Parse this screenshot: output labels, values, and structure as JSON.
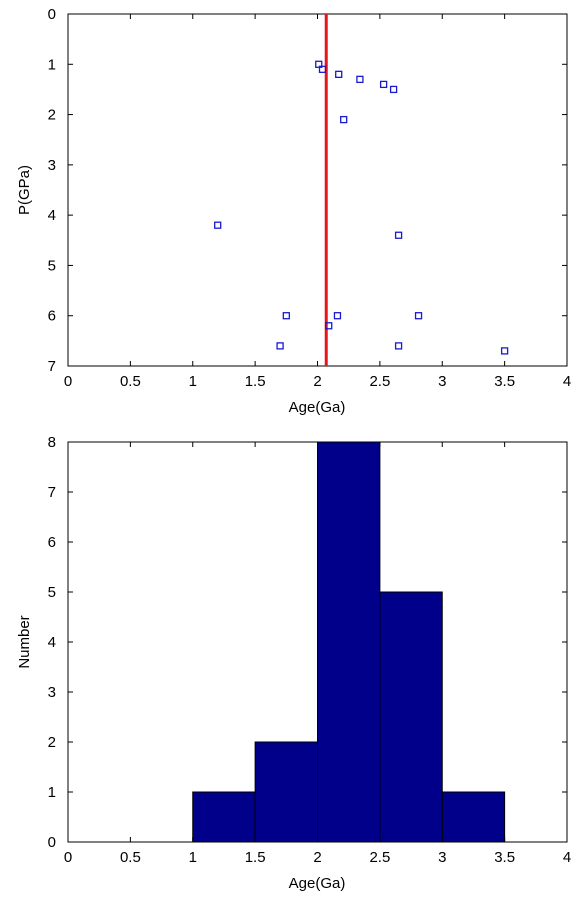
{
  "chart_data": [
    {
      "type": "scatter",
      "xlabel": "Age(Ga)",
      "ylabel": "P(GPa)",
      "xlim": [
        0,
        4
      ],
      "ylim": [
        0,
        7
      ],
      "y_axis_reversed": true,
      "x_ticks": [
        "0",
        "0.5",
        "1",
        "1.5",
        "2",
        "2.5",
        "3",
        "3.5",
        "4"
      ],
      "y_ticks": [
        "0",
        "1",
        "2",
        "3",
        "4",
        "5",
        "6",
        "7"
      ],
      "grid": false,
      "marker": "square-open",
      "marker_color": "#1a1ad0",
      "points": [
        {
          "x": 2.01,
          "y": 1.0
        },
        {
          "x": 2.04,
          "y": 1.1
        },
        {
          "x": 2.17,
          "y": 1.2
        },
        {
          "x": 2.34,
          "y": 1.3
        },
        {
          "x": 2.53,
          "y": 1.4
        },
        {
          "x": 2.61,
          "y": 1.5
        },
        {
          "x": 2.21,
          "y": 2.1
        },
        {
          "x": 1.2,
          "y": 4.2
        },
        {
          "x": 2.65,
          "y": 4.4
        },
        {
          "x": 1.75,
          "y": 6.0
        },
        {
          "x": 2.16,
          "y": 6.0
        },
        {
          "x": 2.81,
          "y": 6.0
        },
        {
          "x": 2.09,
          "y": 6.2
        },
        {
          "x": 1.7,
          "y": 6.6
        },
        {
          "x": 2.65,
          "y": 6.6
        },
        {
          "x": 3.5,
          "y": 6.7
        }
      ],
      "vertical_line": {
        "x": 2.07,
        "color": "#e8141a"
      }
    },
    {
      "type": "bar",
      "xlabel": "Age(Ga)",
      "ylabel": "Number",
      "xlim": [
        0,
        4
      ],
      "ylim": [
        0,
        8
      ],
      "x_ticks": [
        "0",
        "0.5",
        "1",
        "1.5",
        "2",
        "2.5",
        "3",
        "3.5",
        "4"
      ],
      "y_ticks": [
        "0",
        "1",
        "2",
        "3",
        "4",
        "5",
        "6",
        "7",
        "8"
      ],
      "grid": false,
      "bar_color": "#00008b",
      "bins": [
        {
          "x0": 1.0,
          "x1": 1.5,
          "value": 1
        },
        {
          "x0": 1.5,
          "x1": 2.0,
          "value": 2
        },
        {
          "x0": 2.0,
          "x1": 2.5,
          "value": 8
        },
        {
          "x0": 2.5,
          "x1": 3.0,
          "value": 5
        },
        {
          "x0": 3.0,
          "x1": 3.5,
          "value": 1
        }
      ]
    }
  ]
}
